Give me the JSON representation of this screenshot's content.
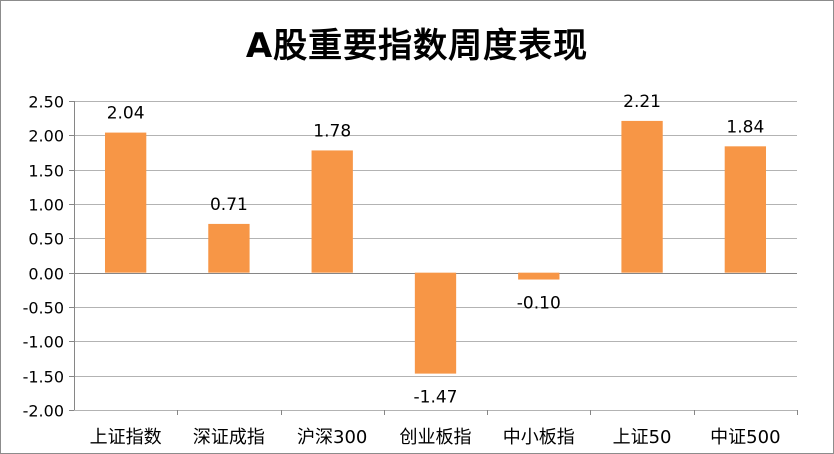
{
  "chart_data": {
    "type": "bar",
    "title": "A股重要指数周度表现",
    "categories": [
      "上证指数",
      "深证成指",
      "沪深300",
      "创业板指",
      "中小板指",
      "上证50",
      "中证500"
    ],
    "values": [
      2.04,
      0.71,
      1.78,
      -1.47,
      -0.1,
      2.21,
      1.84
    ],
    "data_labels": [
      "2.04",
      "0.71",
      "1.78",
      "-1.47",
      "-0.10",
      "2.21",
      "1.84"
    ],
    "ylim": [
      -2.0,
      2.5
    ],
    "yticks": [
      2.5,
      2.0,
      1.5,
      1.0,
      0.5,
      0.0,
      -0.5,
      -1.0,
      -1.5,
      -2.0
    ],
    "ytick_labels": [
      "2.50",
      "2.00",
      "1.50",
      "1.00",
      "0.50",
      "0.00",
      "-0.50",
      "-1.00",
      "-1.50",
      "-2.00"
    ],
    "grid": true,
    "legend": "none",
    "xlabel": "",
    "ylabel": "",
    "colors": {
      "bar": "#f79646",
      "grid": "#b3b3b3",
      "axis": "#868686",
      "text": "#000000"
    }
  }
}
